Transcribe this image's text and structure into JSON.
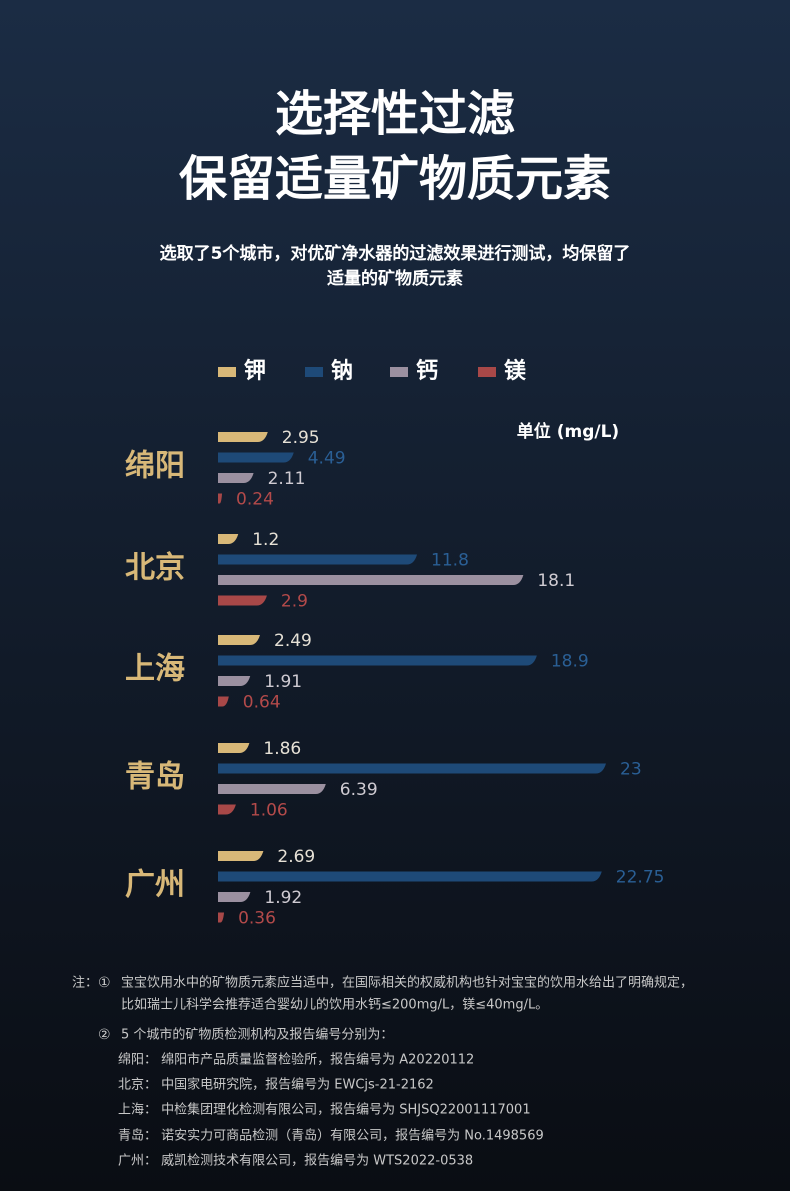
{
  "header": {
    "title": [
      "选择性过滤",
      "保留适量矿物质元素"
    ],
    "subtitle": [
      "选取了5个城市，对优矿净水器的过滤效果进行测试，均保留了",
      "适量的矿物质元素"
    ]
  },
  "chart_data": {
    "type": "hbar-grouped",
    "unit": "单位 (mg/L)",
    "categories": [
      "绵阳",
      "北京",
      "上海",
      "青岛",
      "广州"
    ],
    "series": [
      {
        "name": "钾",
        "color": "#d8b878",
        "label_color": "#e6e1d6",
        "values": [
          2.95,
          1.2,
          2.49,
          1.86,
          2.69
        ]
      },
      {
        "name": "钠",
        "color": "#1e4a78",
        "label_color": "#2a5f95",
        "values": [
          4.49,
          11.8,
          18.9,
          23,
          22.75
        ]
      },
      {
        "name": "钙",
        "color": "#9b90a0",
        "label_color": "#cfcbd2",
        "values": [
          2.11,
          18.1,
          1.91,
          6.39,
          1.92
        ]
      },
      {
        "name": "镁",
        "color": "#a84848",
        "label_color": "#b34a4a",
        "values": [
          0.24,
          2.9,
          0.64,
          1.06,
          0.36
        ]
      }
    ]
  },
  "notes": {
    "label": "注：",
    "items": [
      {
        "marker": "①",
        "lines": [
          "宝宝饮用水中的矿物质元素应当适中，在国际相关的权威机构也针对宝宝的饮用水给出了明确规定，",
          "比如瑞士儿科学会推荐适合婴幼儿的饮用水钙≤200mg/L，镁≤40mg/L。"
        ]
      },
      {
        "marker": "②",
        "lines": [
          "5 个城市的矿物质检测机构及报告编号分别为：",
          "绵阳：  绵阳市产品质量监督检验所，报告编号为 A20220112",
          "北京：  中国家电研究院，报告编号为 EWCjs-21-2162",
          "上海：  中检集团理化检测有限公司，报告编号为 SHJSQ22001117001",
          "青岛：  诺安实力可商品检测（青岛）有限公司，报告编号为 No.1498569",
          "广州：  威凯检测技术有限公司，报告编号为 WTS2022-0538"
        ]
      }
    ]
  }
}
